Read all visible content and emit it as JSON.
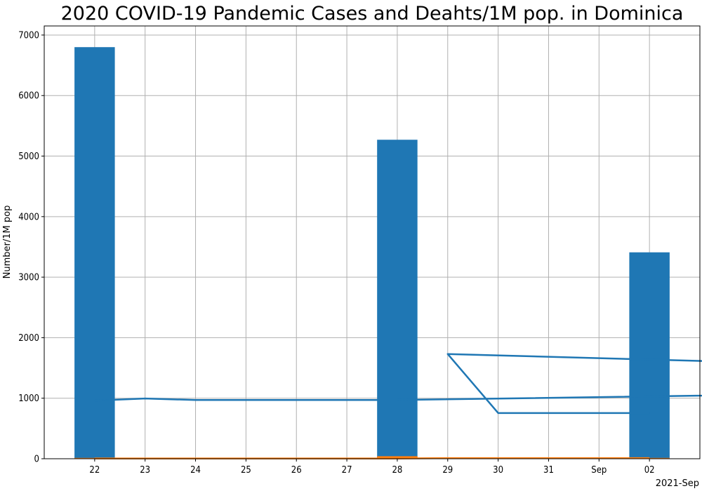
{
  "chart_data": {
    "type": "bar",
    "title": "2020 COVID-19 Pandemic Cases and Deahts/1M pop. in Dominica",
    "xlabel": "",
    "ylabel": "Number/1M pop",
    "x_corner_label": "2021-Sep",
    "categories": [
      "22",
      "23",
      "24",
      "25",
      "26",
      "27",
      "28",
      "29",
      "30",
      "31",
      "Sep",
      "02"
    ],
    "ylim": [
      0,
      7150
    ],
    "yticks": [
      0,
      1000,
      2000,
      3000,
      4000,
      5000,
      6000,
      7000
    ],
    "grid": true,
    "legend": "none",
    "series": [
      {
        "kind": "bar",
        "color": "#1f77b4",
        "points": [
          {
            "x": "22",
            "value": 6800
          },
          {
            "x": "28",
            "value": 5270
          },
          {
            "x": "02",
            "value": 3410
          }
        ]
      },
      {
        "kind": "bar",
        "color": "#ff7f0e",
        "points": [
          {
            "x": "22",
            "value": 14
          },
          {
            "x": "28",
            "value": 42
          },
          {
            "x": "02",
            "value": 14
          }
        ]
      },
      {
        "kind": "line",
        "color": "#1f77b4",
        "points": [
          {
            "x": "22",
            "value": 960
          },
          {
            "x": "23",
            "value": 995
          },
          {
            "x": "24",
            "value": 970
          },
          {
            "x": "25",
            "value": 970
          },
          {
            "x": "26",
            "value": 970
          },
          {
            "x": "27",
            "value": 970
          },
          {
            "x": "28",
            "value": 970
          },
          {
            "x": "28.4",
            "value": 1240
          },
          {
            "x": "29",
            "value": 1730
          },
          {
            "x": "30",
            "value": 755
          },
          {
            "x": "31",
            "value": 755
          },
          {
            "x": "Sep",
            "value": 755
          },
          {
            "x": "02",
            "value": 755
          }
        ]
      },
      {
        "kind": "line",
        "color": "#ff7f0e",
        "points": [
          {
            "x": "22",
            "value": 5
          },
          {
            "x": "23",
            "value": 5
          },
          {
            "x": "24",
            "value": 5
          },
          {
            "x": "25",
            "value": 5
          },
          {
            "x": "26",
            "value": 5
          },
          {
            "x": "27",
            "value": 5
          },
          {
            "x": "28",
            "value": 5
          },
          {
            "x": "29",
            "value": 10
          },
          {
            "x": "30",
            "value": 10
          },
          {
            "x": "31",
            "value": 10
          },
          {
            "x": "Sep",
            "value": 10
          },
          {
            "x": "02",
            "value": 10
          }
        ]
      }
    ]
  }
}
